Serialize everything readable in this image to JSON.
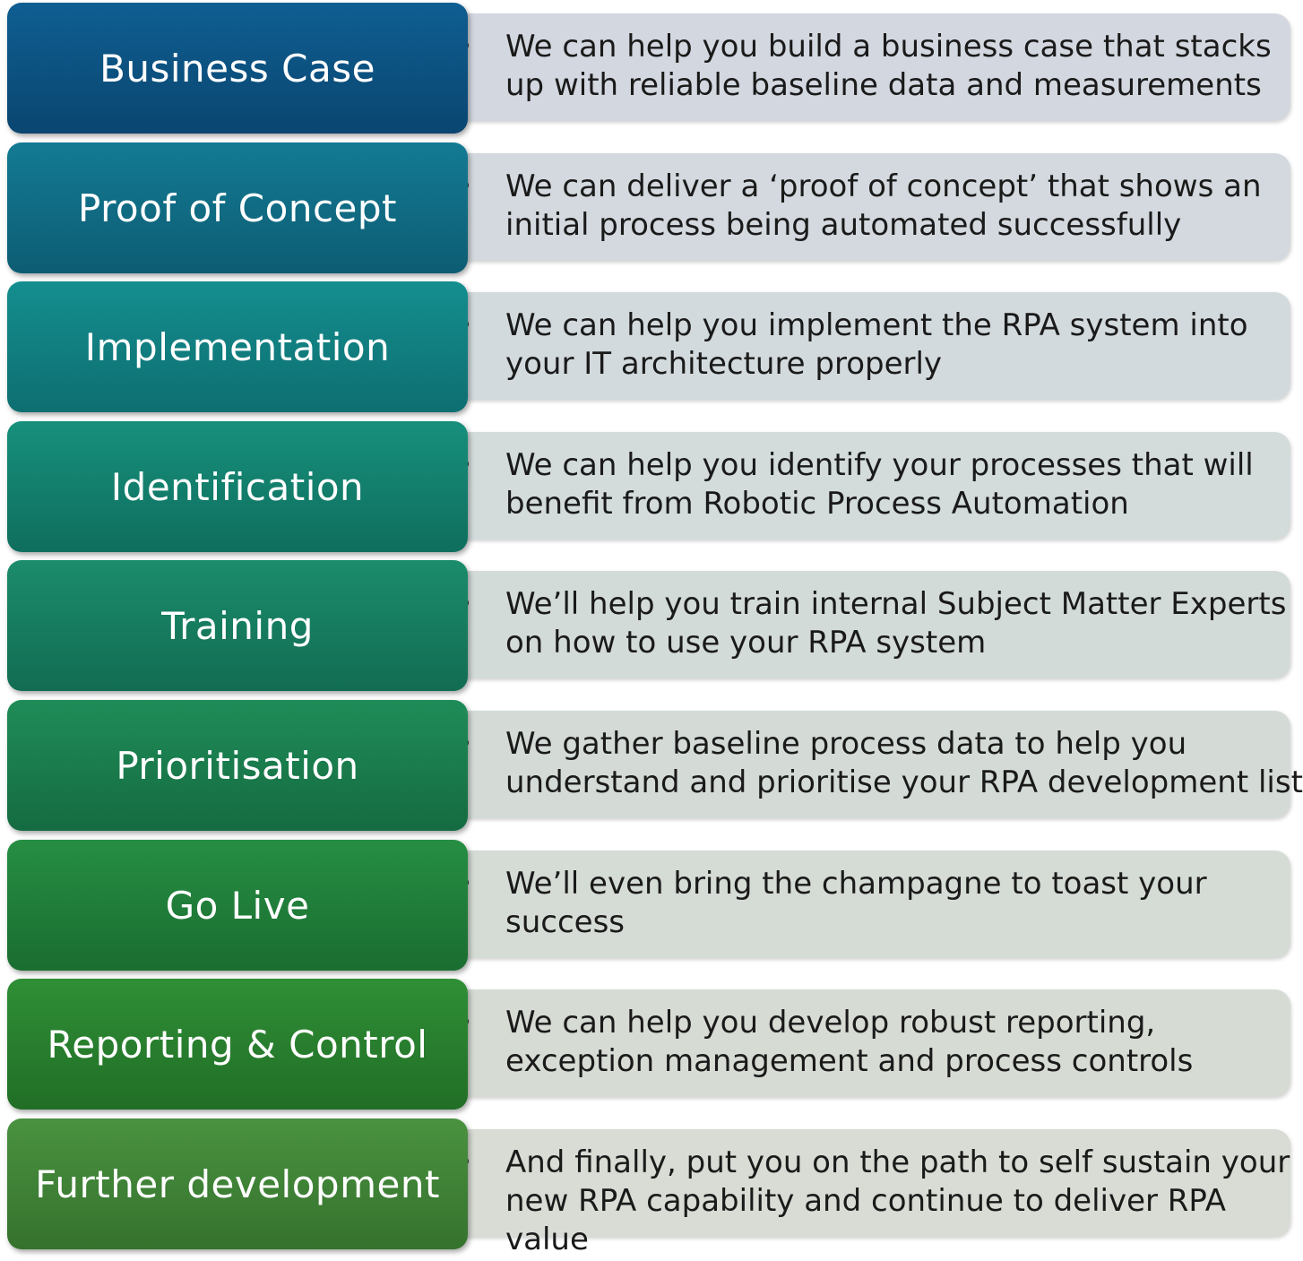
{
  "steps": [
    {
      "label": "Business Case",
      "text": "We can help you build a business case that stacks up with reliable baseline data and measurements",
      "top": "#0f5e92",
      "bottom": "#0a4670",
      "desc_bg": "#d3d7df"
    },
    {
      "label": "Proof of Concept",
      "text": "We can deliver a ‘proof of concept’ that shows an initial process being automated successfully",
      "top": "#137a94",
      "bottom": "#0d5d73",
      "desc_bg": "#d3d9de"
    },
    {
      "label": "Implementation",
      "text": "We can help you implement the RPA system into your IT architecture properly",
      "top": "#148e8f",
      "bottom": "#0e6e70",
      "desc_bg": "#d3dadd"
    },
    {
      "label": "Identification",
      "text": "We can help you identify your processes that will benefit from Robotic Process Automation",
      "top": "#178f7c",
      "bottom": "#0f6e5d",
      "desc_bg": "#d3dbdb"
    },
    {
      "label": "Training",
      "text": "We’ll help you train internal Subject Matter Experts on how to use your RPA system",
      "top": "#1b8c6c",
      "bottom": "#126c52",
      "desc_bg": "#d3dbd9"
    },
    {
      "label": "Prioritisation",
      "text": "We gather baseline process data to help you understand and prioritise your RPA development list",
      "top": "#1f8c58",
      "bottom": "#156b41",
      "desc_bg": "#d4dbd7"
    },
    {
      "label": "Go Live",
      "text": "We’ll even bring the champagne to toast your success",
      "top": "#268e43",
      "bottom": "#1a6d30",
      "desc_bg": "#d5dbd5"
    },
    {
      "label": "Reporting & Control",
      "text": "We can help you develop robust reporting, exception management and process controls",
      "top": "#2f8f36",
      "bottom": "#216e26",
      "desc_bg": "#d6dbd4"
    },
    {
      "label": "Further development",
      "text": "And finally, put you on the path to self sustain your new RPA capability and continue to deliver RPA value",
      "top": "#4a9240",
      "bottom": "#35722d",
      "desc_bg": "#d8dcd4"
    }
  ],
  "bullet_char": "•"
}
